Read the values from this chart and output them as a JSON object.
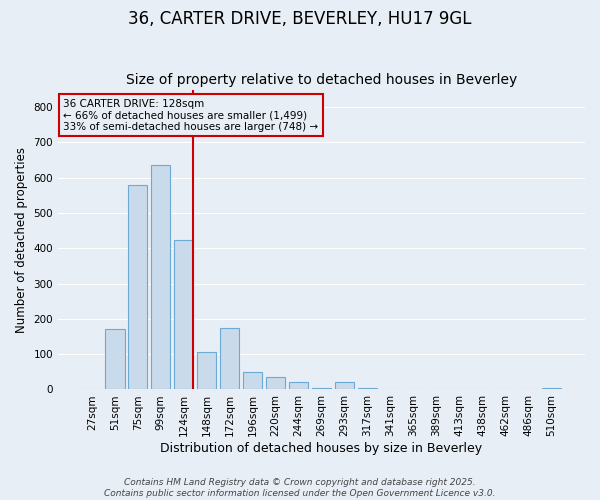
{
  "title": "36, CARTER DRIVE, BEVERLEY, HU17 9GL",
  "subtitle": "Size of property relative to detached houses in Beverley",
  "xlabel": "Distribution of detached houses by size in Beverley",
  "ylabel": "Number of detached properties",
  "categories": [
    "27sqm",
    "51sqm",
    "75sqm",
    "99sqm",
    "124sqm",
    "148sqm",
    "172sqm",
    "196sqm",
    "220sqm",
    "244sqm",
    "269sqm",
    "293sqm",
    "317sqm",
    "341sqm",
    "365sqm",
    "389sqm",
    "413sqm",
    "438sqm",
    "462sqm",
    "486sqm",
    "510sqm"
  ],
  "values": [
    0,
    170,
    580,
    635,
    425,
    105,
    175,
    50,
    35,
    20,
    5,
    20,
    5,
    0,
    0,
    0,
    0,
    0,
    0,
    0,
    5
  ],
  "bar_color": "#c9daea",
  "bar_edge_color": "#6aaad4",
  "highlight_index": 4,
  "highlight_line_color": "#cc0000",
  "annotation_text": "36 CARTER DRIVE: 128sqm\n← 66% of detached houses are smaller (1,499)\n33% of semi-detached houses are larger (748) →",
  "annotation_box_color": "#cc0000",
  "ylim": [
    0,
    850
  ],
  "yticks": [
    0,
    100,
    200,
    300,
    400,
    500,
    600,
    700,
    800
  ],
  "background_color": "#e8eef5",
  "grid_color": "#ffffff",
  "footer_text": "Contains HM Land Registry data © Crown copyright and database right 2025.\nContains public sector information licensed under the Open Government Licence v3.0.",
  "title_fontsize": 12,
  "subtitle_fontsize": 10,
  "xlabel_fontsize": 9,
  "ylabel_fontsize": 8.5,
  "tick_fontsize": 7.5,
  "footer_fontsize": 6.5
}
